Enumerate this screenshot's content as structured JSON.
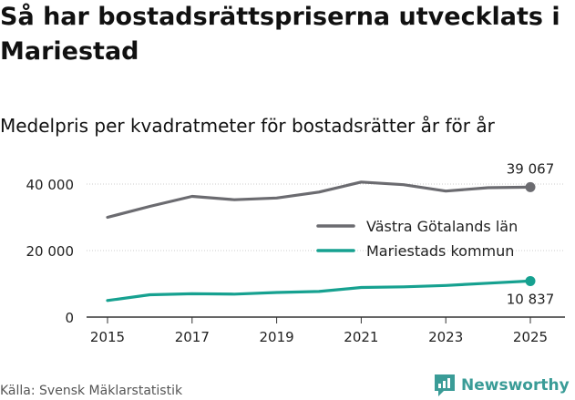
{
  "title": "Så har bostadsrättspriserna utvecklats i Mariestad",
  "subtitle": "Medelpris per kvadratmeter för bostadsrätter år för år",
  "source": "Källa: Svensk Mäklarstatistik",
  "brand": "Newsworthy",
  "chart_data": {
    "type": "line",
    "title": "Medelpris per kvadratmeter för bostadsrätter år för år",
    "xlabel": "",
    "ylabel": "",
    "x": [
      2015,
      2016,
      2017,
      2018,
      2019,
      2020,
      2021,
      2022,
      2023,
      2024,
      2025
    ],
    "xticks": [
      "2015",
      "2017",
      "2019",
      "2021",
      "2023",
      "2025"
    ],
    "yticks": [
      0,
      20000,
      40000
    ],
    "ytick_labels": [
      "0",
      "20 000",
      "40 000"
    ],
    "ylim": [
      0,
      45000
    ],
    "xlim": [
      2015,
      2025
    ],
    "grid": "horizontal",
    "legend_position": "right",
    "series": [
      {
        "name": "Västra Götalands län",
        "color": "#6b6b70",
        "values": [
          30000,
          33300,
          36300,
          35300,
          35800,
          37600,
          40600,
          39800,
          37900,
          38900,
          39067
        ],
        "end_label": "39 067",
        "end_label_position": "above"
      },
      {
        "name": "Mariestads kommun",
        "color": "#16a190",
        "values": [
          5000,
          6700,
          7000,
          6900,
          7400,
          7700,
          8900,
          9100,
          9500,
          10200,
          10837
        ],
        "end_label": "10 837",
        "end_label_position": "below"
      }
    ]
  }
}
